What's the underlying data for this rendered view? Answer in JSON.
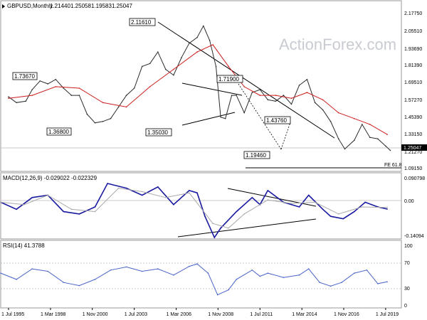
{
  "chart_data": [
    {
      "type": "line",
      "panel": "price",
      "title": "GBPUSD,Monthly",
      "ohlc": [
        "1.21440",
        "1.25058",
        "1.19583",
        "1.25047"
      ],
      "watermark": "ActionForex.com",
      "y_ticks": [
        "2.17750",
        "2.05510",
        "1.93690",
        "1.81390",
        "1.69510",
        "1.57270",
        "1.45390",
        "1.33150",
        "1.21270",
        "1.09150"
      ],
      "ylim": [
        1.09,
        2.19
      ],
      "last_price": "1.25047",
      "series": [
        {
          "color": "#2b2b2b",
          "x": [
            1995.5,
            1996.0,
            1996.6,
            1997.0,
            1997.5,
            1998.0,
            1998.5,
            1999.0,
            1999.5,
            2000.0,
            2000.5,
            2001.0,
            2001.5,
            2002.0,
            2002.5,
            2003.0,
            2003.5,
            2004.0,
            2004.5,
            2005.0,
            2005.5,
            2006.0,
            2006.5,
            2007.0,
            2007.5,
            2007.9,
            2008.3,
            2008.7,
            2009.0,
            2009.3,
            2009.7,
            2010.0,
            2010.5,
            2011.0,
            2011.5,
            2012.0,
            2012.5,
            2013.0,
            2013.5,
            2014.0,
            2014.5,
            2015.0,
            2015.5,
            2016.0,
            2016.5,
            2016.9,
            2017.5,
            2018.0,
            2018.5,
            2019.0,
            2019.5,
            2019.8
          ],
          "values": [
            1.59,
            1.55,
            1.56,
            1.64,
            1.7,
            1.68,
            1.71,
            1.65,
            1.6,
            1.6,
            1.47,
            1.41,
            1.42,
            1.44,
            1.52,
            1.6,
            1.65,
            1.8,
            1.82,
            1.9,
            1.78,
            1.74,
            1.86,
            1.96,
            2.0,
            2.08,
            1.98,
            1.8,
            1.45,
            1.44,
            1.6,
            1.6,
            1.48,
            1.62,
            1.64,
            1.57,
            1.56,
            1.6,
            1.54,
            1.67,
            1.71,
            1.55,
            1.5,
            1.42,
            1.3,
            1.23,
            1.29,
            1.4,
            1.31,
            1.3,
            1.25,
            1.22
          ]
        },
        {
          "color": "#cc1e1e",
          "x": [
            1995.5,
            1997.0,
            1998.5,
            2000.0,
            2001.5,
            2003.0,
            2004.5,
            2006.0,
            2007.5,
            2008.5,
            2009.5,
            2010.5,
            2011.5,
            2012.5,
            2013.5,
            2014.5,
            2015.5,
            2016.5,
            2017.5,
            2018.5,
            2019.6
          ],
          "values": [
            1.58,
            1.6,
            1.66,
            1.65,
            1.55,
            1.52,
            1.66,
            1.78,
            1.9,
            1.95,
            1.8,
            1.66,
            1.6,
            1.6,
            1.58,
            1.62,
            1.57,
            1.48,
            1.44,
            1.4,
            1.33
          ]
        }
      ],
      "annotations": [
        "1.73670",
        "1.36800",
        "2.11610",
        "1.35030",
        "1.71900",
        "1.43760",
        "1.19460"
      ],
      "fibo_label": "FE 61.8"
    },
    {
      "type": "line",
      "panel": "macd",
      "title": "MACD(12,26,9) -0.029022 -0.022329",
      "y_ticks": [
        "0.090798",
        "0.00",
        "-0.14094"
      ],
      "ylim": [
        -0.15,
        0.095
      ],
      "series": [
        {
          "color": "#1a1aa0",
          "x": [
            1995.0,
            1996.0,
            1997.0,
            1998.0,
            1999.0,
            2000.0,
            2001.0,
            2001.8,
            2003.0,
            2004.0,
            2005.0,
            2006.0,
            2007.0,
            2007.5,
            2008.0,
            2008.6,
            2009.0,
            2010.0,
            2011.0,
            2011.5,
            2012.0,
            2013.0,
            2014.0,
            2014.6,
            2015.5,
            2016.0,
            2016.8,
            2017.5,
            2018.2,
            2019.0,
            2019.6
          ],
          "values": [
            0.0,
            -0.03,
            0.02,
            0.03,
            -0.04,
            -0.05,
            -0.02,
            0.08,
            0.06,
            0.03,
            0.065,
            -0.01,
            0.05,
            0.04,
            -0.06,
            -0.15,
            -0.11,
            -0.04,
            0.02,
            -0.01,
            0.05,
            0.0,
            -0.02,
            0.03,
            -0.03,
            -0.06,
            -0.07,
            -0.04,
            0.0,
            -0.02,
            -0.029
          ]
        },
        {
          "color": "#a8a8a8",
          "x": [
            1995.0,
            1996.5,
            1998.0,
            1999.5,
            2001.0,
            2002.5,
            2004.0,
            2005.5,
            2007.0,
            2008.5,
            2009.5,
            2010.5,
            2012.0,
            2013.5,
            2015.0,
            2016.5,
            2018.0,
            2019.6
          ],
          "values": [
            0.0,
            -0.01,
            0.03,
            -0.03,
            -0.04,
            0.06,
            0.045,
            0.02,
            0.04,
            -0.09,
            -0.11,
            -0.05,
            0.01,
            -0.005,
            0.0,
            -0.05,
            -0.02,
            -0.022
          ]
        }
      ]
    },
    {
      "type": "line",
      "panel": "rsi",
      "title": "RSI(14) 41.3788",
      "y_ticks": [
        "100",
        "70",
        "30",
        "0"
      ],
      "ylim": [
        0,
        100
      ],
      "series": [
        {
          "color": "#4a64c8",
          "x": [
            1995.0,
            1996.0,
            1997.0,
            1998.0,
            1999.0,
            2000.0,
            2001.0,
            2002.0,
            2003.0,
            2004.0,
            2005.0,
            2006.0,
            2007.0,
            2007.5,
            2008.2,
            2008.8,
            2009.5,
            2010.0,
            2011.0,
            2011.5,
            2012.0,
            2013.0,
            2014.0,
            2014.6,
            2015.3,
            2016.0,
            2016.7,
            2017.5,
            2018.3,
            2019.0,
            2019.6
          ],
          "values": [
            55,
            45,
            62,
            58,
            40,
            35,
            45,
            60,
            65,
            58,
            62,
            52,
            66,
            70,
            55,
            20,
            28,
            45,
            60,
            50,
            55,
            48,
            52,
            62,
            40,
            34,
            40,
            55,
            60,
            38,
            41
          ]
        }
      ]
    }
  ],
  "x_axis_labels": [
    "1 Jul 1995",
    "1 Mar 1998",
    "1 Nov 2000",
    "1 Jul 2003",
    "1 Mar 2006",
    "1 Nov 2008",
    "1 Jul 2011",
    "1 Mar 2014",
    "1 Nov 2016",
    "1 Jul 2019"
  ],
  "x_axis_dates": [
    1995.5,
    1998.17,
    2000.83,
    2003.5,
    2006.17,
    2008.83,
    2011.5,
    2014.17,
    2016.83,
    2019.5
  ]
}
